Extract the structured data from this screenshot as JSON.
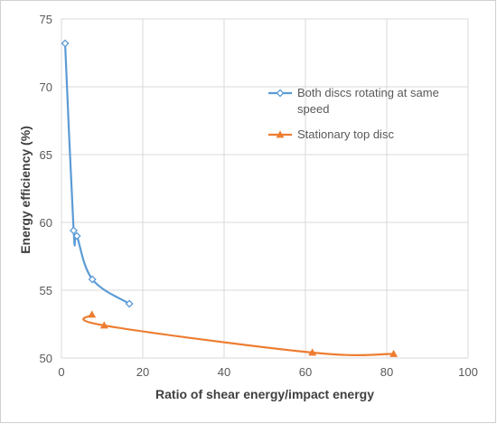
{
  "chart_data": {
    "type": "line",
    "title": "",
    "xlabel": "Ratio of shear energy/impact energy",
    "ylabel": "Energy efficiency (%)",
    "xlim": [
      0,
      100
    ],
    "ylim": [
      50,
      75
    ],
    "xticks": [
      0,
      20,
      40,
      60,
      80,
      100
    ],
    "yticks": [
      50,
      55,
      60,
      65,
      70,
      75
    ],
    "grid": true,
    "legend": "top-right",
    "series": [
      {
        "name": "Both discs rotating at same speed",
        "name_lines": [
          "Both discs rotating at same",
          "speed"
        ],
        "color": "#5b9bd5",
        "marker": "diamond",
        "x": [
          0.9,
          3.0,
          3.8,
          7.6,
          16.7
        ],
        "y": [
          73.2,
          59.4,
          59.0,
          55.8,
          54.0
        ]
      },
      {
        "name": "Stationary top disc",
        "name_lines": [
          "Stationary top disc"
        ],
        "color": "#ed7d31",
        "marker": "triangle",
        "x": [
          7.5,
          10.5,
          61.7,
          81.7
        ],
        "y": [
          53.2,
          52.4,
          50.4,
          50.3
        ]
      }
    ]
  }
}
